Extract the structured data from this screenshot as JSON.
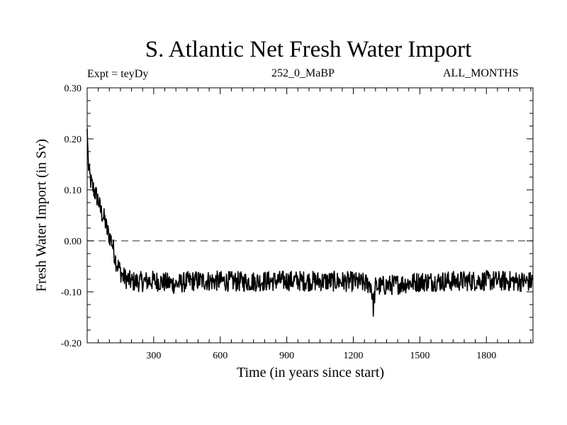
{
  "chart_data": {
    "type": "line",
    "title": "S. Atlantic Net Fresh Water Import",
    "experiment_label": "Expt = teyDy",
    "subtitle": "252_0_MaBP",
    "months_label": "ALL_MONTHS",
    "xlabel": "Time (in years since start)",
    "ylabel": "Fresh Water Import (in Sv)",
    "xlim": [
      0,
      2010
    ],
    "ylim": [
      -0.2,
      0.3
    ],
    "xticks": [
      300,
      600,
      900,
      1200,
      1500,
      1800
    ],
    "xtick_labels": [
      "300",
      "600",
      "900",
      "1200",
      "1500",
      "1800"
    ],
    "yticks": [
      -0.2,
      -0.1,
      0.0,
      0.1,
      0.2,
      0.3
    ],
    "ytick_labels": [
      "-0.20",
      "-0.10",
      "0.00",
      "0.10",
      "0.20",
      "0.30"
    ],
    "reference_line": {
      "y": 0.0,
      "style": "dashed"
    },
    "series": [
      {
        "name": "Net Fresh Water Import",
        "x": [
          0,
          5,
          10,
          15,
          20,
          30,
          40,
          50,
          60,
          70,
          80,
          90,
          100,
          110,
          120,
          130,
          140,
          150,
          160,
          180,
          200,
          250,
          300,
          400,
          450,
          500,
          700,
          900,
          1200,
          1280,
          1290,
          1300,
          1500,
          1800,
          2000,
          2010
        ],
        "y": [
          0.22,
          0.15,
          0.13,
          0.12,
          0.11,
          0.1,
          0.09,
          0.08,
          0.06,
          0.05,
          0.04,
          0.02,
          0.01,
          0.0,
          -0.02,
          -0.04,
          -0.05,
          -0.06,
          -0.07,
          -0.075,
          -0.08,
          -0.08,
          -0.078,
          -0.085,
          -0.08,
          -0.078,
          -0.08,
          -0.078,
          -0.08,
          -0.085,
          -0.13,
          -0.09,
          -0.08,
          -0.078,
          -0.08,
          -0.078
        ],
        "noise_amplitude": 0.02
      }
    ]
  }
}
